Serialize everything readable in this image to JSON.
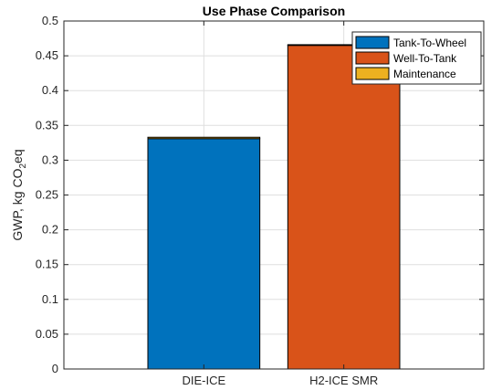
{
  "chart_data": {
    "type": "bar",
    "stacked": true,
    "title": "Use Phase Comparison",
    "xlabel": "",
    "ylabel": "GWP, kg CO2 eq",
    "ylabel_parts": {
      "main": "GWP, kg CO",
      "sub": "2",
      "tail": "eq"
    },
    "categories": [
      "DIE-ICE",
      "H2-ICE SMR"
    ],
    "ylim": [
      0,
      0.5
    ],
    "yticks": [
      0,
      0.05,
      0.1,
      0.15,
      0.2,
      0.25,
      0.3,
      0.35,
      0.4,
      0.45,
      0.5
    ],
    "ytick_labels": [
      "0",
      "0.05",
      "0.1",
      "0.15",
      "0.2",
      "0.25",
      "0.3",
      "0.35",
      "0.4",
      "0.45",
      "0.5"
    ],
    "grid": true,
    "legend_position": "top-right",
    "series": [
      {
        "name": "Tank-To-Wheel",
        "color": "#0072BD",
        "values": [
          0.331,
          0
        ]
      },
      {
        "name": "Well-To-Tank",
        "color": "#D95319",
        "values": [
          0,
          0.465
        ]
      },
      {
        "name": "Maintenance",
        "color": "#EDB120",
        "values": [
          0.002,
          0.001
        ]
      }
    ]
  }
}
